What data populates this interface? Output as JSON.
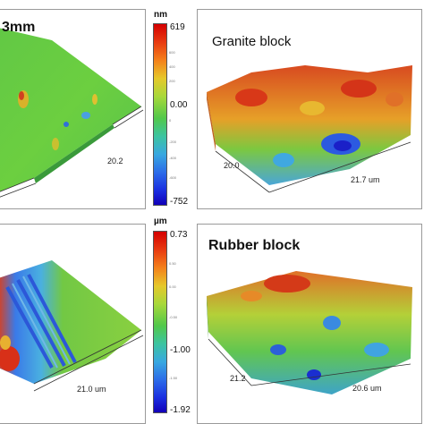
{
  "panels": {
    "top_left": {
      "title": "3mm",
      "x_axis_label": "20.2"
    },
    "top_right": {
      "title": "Granite block",
      "y_axis_label": "20.0",
      "x_axis_label": "21.7 um"
    },
    "bottom_left": {
      "x_axis_label": "21.0 um"
    },
    "bottom_right": {
      "title": "Rubber block",
      "y_axis_label": "21.2",
      "x_axis_label": "20.6 um"
    }
  },
  "colorbars": {
    "top": {
      "unit": "nm",
      "max_label": "619",
      "mid_label": "0.00",
      "min_label": "-752",
      "small_ticks": [
        "600",
        "400",
        "200",
        "0",
        "-200",
        "-400",
        "-600"
      ]
    },
    "bottom": {
      "unit": "µm",
      "max_label": "0.73",
      "mid_label": "-1.00",
      "min_label": "-1.92",
      "small_ticks": [
        "0.50",
        "0.00",
        "-0.50",
        "-1.50"
      ]
    }
  },
  "colors": {
    "high": "#d40000",
    "mid": "#52c84a",
    "low": "#1200b8"
  }
}
